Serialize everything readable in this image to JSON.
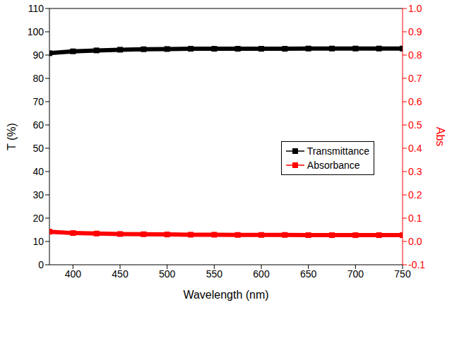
{
  "chart_data": {
    "type": "line",
    "x_label": "Wavelength (nm)",
    "y_label": "T (%)",
    "y2_label": "Abs",
    "x": [
      375,
      400,
      425,
      450,
      475,
      500,
      525,
      550,
      575,
      600,
      625,
      650,
      675,
      700,
      725,
      750
    ],
    "xlim": [
      375,
      750
    ],
    "xticks": [
      400,
      450,
      500,
      550,
      600,
      650,
      700,
      750
    ],
    "ylim": [
      0,
      110
    ],
    "yticks": [
      0,
      10,
      20,
      30,
      40,
      50,
      60,
      70,
      80,
      90,
      100,
      110
    ],
    "y2lim": [
      -0.1,
      1.0
    ],
    "y2ticks": [
      -0.1,
      {
        "value": 0,
        "label": "0.0"
      },
      0.1,
      0.2,
      0.3,
      0.4,
      0.5,
      0.6,
      0.7,
      0.8,
      0.9,
      {
        "value": 1,
        "label": "1.0"
      }
    ],
    "grid": false,
    "legend": "right",
    "series": [
      {
        "name": "Transmittance",
        "color": "#000000",
        "marker": "square",
        "line_style": "solid",
        "values": [
          90.8,
          91.6,
          92.0,
          92.3,
          92.5,
          92.6,
          92.7,
          92.7,
          92.7,
          92.7,
          92.7,
          92.8,
          92.8,
          92.8,
          92.8,
          92.8
        ]
      },
      {
        "name": "Absorbance",
        "color": "#ff0000",
        "marker": "square",
        "line_style": "solid",
        "axis": "y2",
        "values": [
          0.042,
          0.036,
          0.034,
          0.032,
          0.031,
          0.03,
          0.029,
          0.029,
          0.028,
          0.028,
          0.028,
          0.027,
          0.027,
          0.027,
          0.027,
          0.027
        ]
      }
    ]
  }
}
